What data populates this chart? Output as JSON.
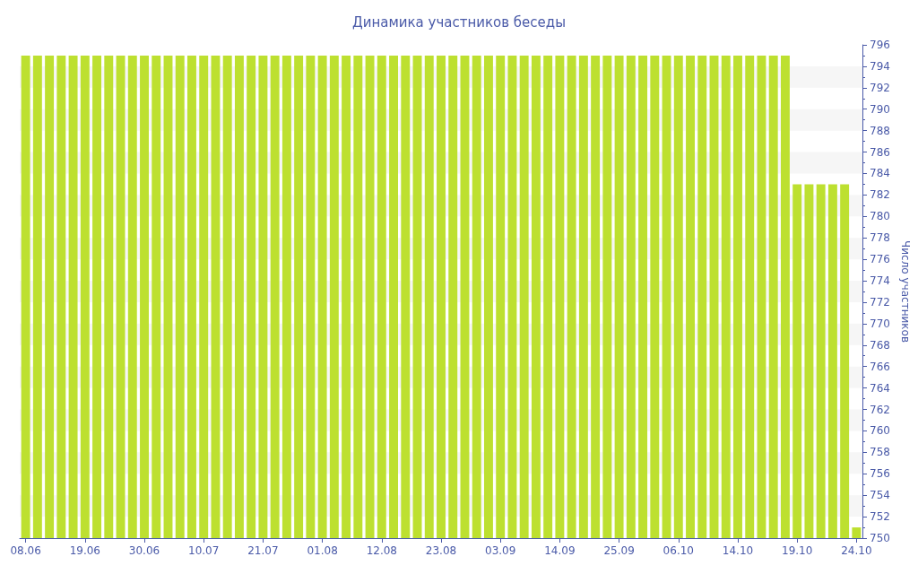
{
  "chart_data": {
    "type": "bar",
    "title": "Динамика участников беседы",
    "ylabel": "Число участников",
    "categories": [
      "08.06",
      null,
      null,
      null,
      null,
      "19.06",
      null,
      null,
      null,
      null,
      "30.06",
      null,
      null,
      null,
      null,
      "10.07",
      null,
      null,
      null,
      null,
      "21.07",
      null,
      null,
      null,
      null,
      "01.08",
      null,
      null,
      null,
      null,
      "12.08",
      null,
      null,
      null,
      null,
      "23.08",
      null,
      null,
      null,
      null,
      "03.09",
      null,
      null,
      null,
      null,
      "14.09",
      null,
      null,
      null,
      null,
      "25.09",
      null,
      null,
      null,
      null,
      "06.10",
      null,
      null,
      null,
      null,
      "14.10",
      null,
      null,
      null,
      null,
      "19.10",
      null,
      null,
      null,
      null,
      "24.10"
    ],
    "values": [
      795,
      795,
      795,
      795,
      795,
      795,
      795,
      795,
      795,
      795,
      795,
      795,
      795,
      795,
      795,
      795,
      795,
      795,
      795,
      795,
      795,
      795,
      795,
      795,
      795,
      795,
      795,
      795,
      795,
      795,
      795,
      795,
      795,
      795,
      795,
      795,
      795,
      795,
      795,
      795,
      795,
      795,
      795,
      795,
      795,
      795,
      795,
      795,
      795,
      795,
      795,
      795,
      795,
      795,
      795,
      795,
      795,
      795,
      795,
      795,
      795,
      795,
      795,
      795,
      795,
      783,
      783,
      783,
      783,
      783,
      751
    ],
    "color": "#bde030",
    "ylim": [
      750,
      796
    ],
    "yticks": [
      750,
      752,
      754,
      756,
      758,
      760,
      762,
      764,
      766,
      768,
      770,
      772,
      774,
      776,
      778,
      780,
      782,
      784,
      786,
      788,
      790,
      792,
      794,
      796
    ],
    "bands": [
      {
        "axis": "y",
        "from": 752,
        "to": 754,
        "color": "#f6f6f6"
      },
      {
        "axis": "y",
        "from": 756,
        "to": 758,
        "color": "#f6f6f6"
      },
      {
        "axis": "y",
        "from": 760,
        "to": 762,
        "color": "#f6f6f6"
      },
      {
        "axis": "y",
        "from": 764,
        "to": 766,
        "color": "#f6f6f6"
      },
      {
        "axis": "y",
        "from": 768,
        "to": 770,
        "color": "#f6f6f6"
      },
      {
        "axis": "y",
        "from": 772,
        "to": 774,
        "color": "#f6f6f6"
      },
      {
        "axis": "y",
        "from": 776,
        "to": 778,
        "color": "#f6f6f6"
      },
      {
        "axis": "y",
        "from": 780,
        "to": 782,
        "color": "#f6f6f6"
      },
      {
        "axis": "y",
        "from": 784,
        "to": 786,
        "color": "#f6f6f6"
      },
      {
        "axis": "y",
        "from": 788,
        "to": 790,
        "color": "#f6f6f6"
      },
      {
        "axis": "y",
        "from": 792,
        "to": 794,
        "color": "#f6f6f6"
      }
    ]
  }
}
